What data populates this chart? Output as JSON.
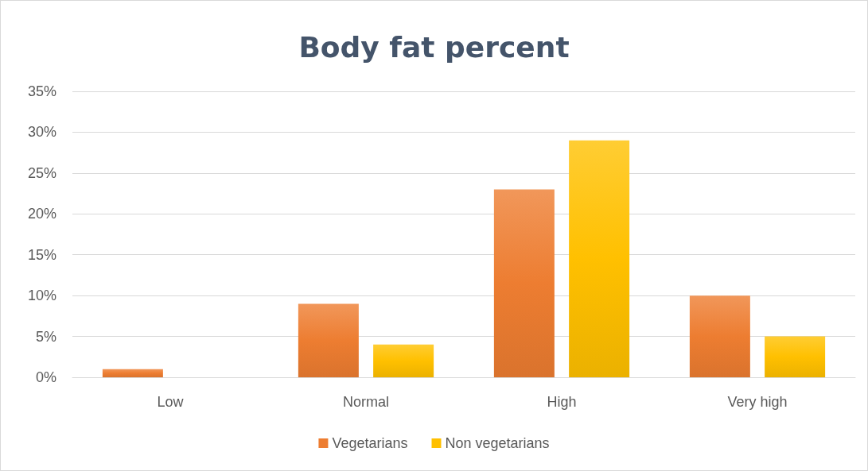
{
  "chart_data": {
    "type": "bar",
    "title": "Body fat percent",
    "categories": [
      "Low",
      "Normal",
      "High",
      "Very high"
    ],
    "series": [
      {
        "name": "Vegetarians",
        "color": "#ed7d31",
        "values": [
          1,
          9,
          23,
          10
        ]
      },
      {
        "name": "Non vegetarians",
        "color": "#ffc000",
        "values": [
          0,
          4,
          29,
          5
        ]
      }
    ],
    "ylim": [
      0,
      35
    ],
    "yticks": [
      {
        "value": 0,
        "label": "0%"
      },
      {
        "value": 5,
        "label": "5%"
      },
      {
        "value": 10,
        "label": "10%"
      },
      {
        "value": 15,
        "label": "15%"
      },
      {
        "value": 20,
        "label": "20%"
      },
      {
        "value": 25,
        "label": "25%"
      },
      {
        "value": 30,
        "label": "30%"
      },
      {
        "value": 35,
        "label": "35%"
      }
    ],
    "grid": "y",
    "legend": "bottom"
  }
}
